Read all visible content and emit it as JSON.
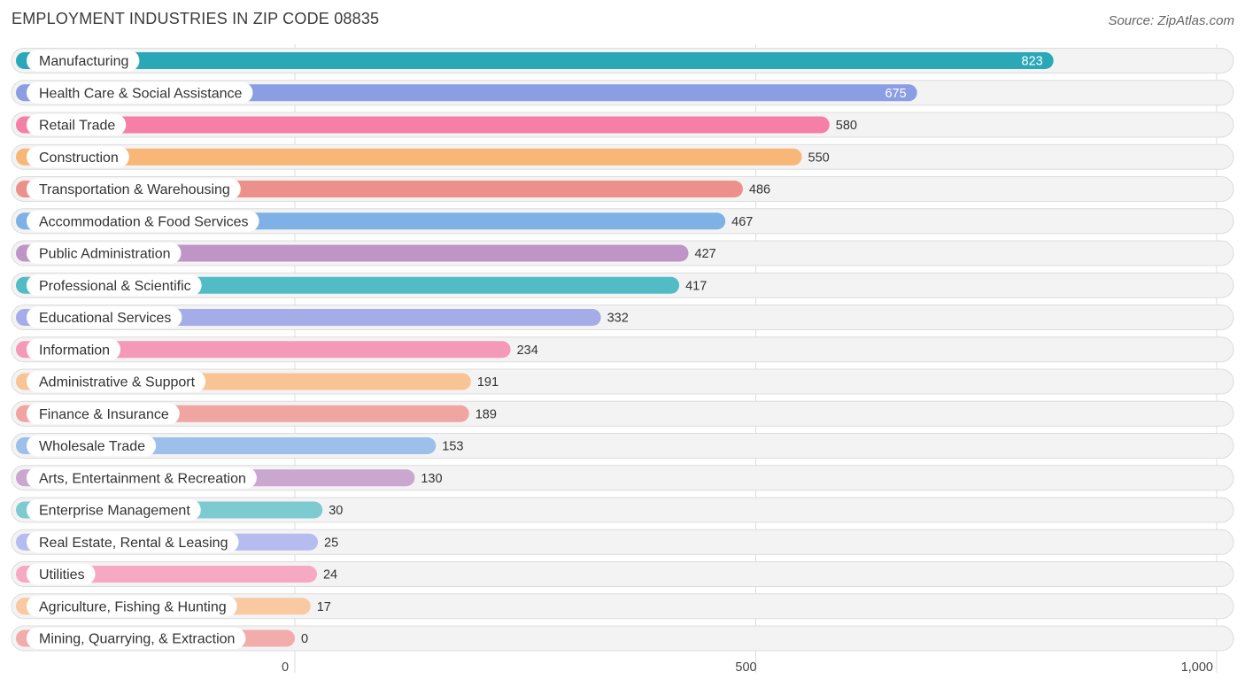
{
  "chart_data": {
    "type": "bar",
    "orientation": "horizontal",
    "title": "EMPLOYMENT INDUSTRIES IN ZIP CODE 08835",
    "source": "Source: ZipAtlas.com",
    "xlabel": "",
    "ylabel": "",
    "xlim": [
      0,
      1000
    ],
    "grid": true,
    "ticks": [
      {
        "value": 0,
        "label": "0"
      },
      {
        "value": 500,
        "label": "500"
      },
      {
        "value": 1000,
        "label": "1,000"
      }
    ],
    "categories": [
      "Manufacturing",
      "Health Care & Social Assistance",
      "Retail Trade",
      "Construction",
      "Transportation & Warehousing",
      "Accommodation & Food Services",
      "Public Administration",
      "Professional & Scientific",
      "Educational Services",
      "Information",
      "Administrative & Support",
      "Finance & Insurance",
      "Wholesale Trade",
      "Arts, Entertainment & Recreation",
      "Enterprise Management",
      "Real Estate, Rental & Leasing",
      "Utilities",
      "Agriculture, Fishing & Hunting",
      "Mining, Quarrying, & Extraction"
    ],
    "values": [
      823,
      675,
      580,
      550,
      486,
      467,
      427,
      417,
      332,
      234,
      191,
      189,
      153,
      130,
      30,
      25,
      24,
      17,
      0
    ],
    "value_labels": [
      "823",
      "675",
      "580",
      "550",
      "486",
      "467",
      "427",
      "417",
      "332",
      "234",
      "191",
      "189",
      "153",
      "130",
      "30",
      "25",
      "24",
      "17",
      "0"
    ],
    "colors": [
      "#2aa8b8",
      "#8b9de3",
      "#f57fa6",
      "#f8b677",
      "#ec908b",
      "#7fb0e6",
      "#bf95c7",
      "#52bcc6",
      "#a5ade8",
      "#f599b8",
      "#f8c496",
      "#f0a5a2",
      "#9cc0ea",
      "#c9a7d1",
      "#7dcad1",
      "#b5bdf0",
      "#f7a8c3",
      "#f9c9a1",
      "#f2acac"
    ]
  }
}
